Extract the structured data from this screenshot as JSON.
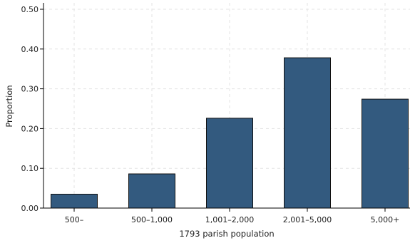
{
  "chart_data": {
    "type": "bar",
    "title": "",
    "xlabel": "1793 parish population",
    "ylabel": "Proportion",
    "categories": [
      "500–",
      "500–1,000",
      "1,001–2,000",
      "2,001–5,000",
      "5,000+"
    ],
    "values": [
      0.035,
      0.086,
      0.226,
      0.378,
      0.274
    ],
    "ylim": [
      0,
      0.5
    ],
    "yticks": [
      0.0,
      0.1,
      0.2,
      0.3,
      0.4,
      0.5
    ],
    "ytick_labels": [
      "0.00",
      "0.10",
      "0.20",
      "0.30",
      "0.40",
      "0.50"
    ],
    "grid": true,
    "legend": "none",
    "bar_color": "#335a7f",
    "bar_edge_color": "#111111"
  }
}
